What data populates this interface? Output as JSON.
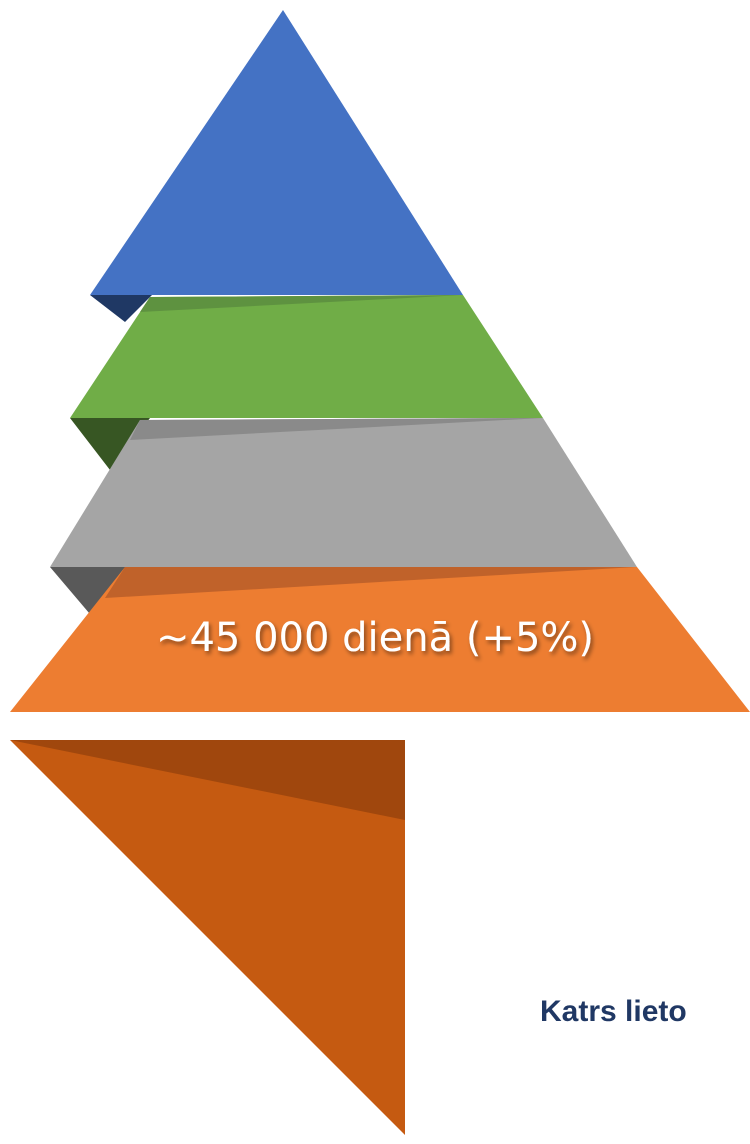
{
  "pyramid": {
    "label": "~45 000 dienā (+5%)"
  },
  "caption": {
    "text": "Katrs lieto"
  }
}
